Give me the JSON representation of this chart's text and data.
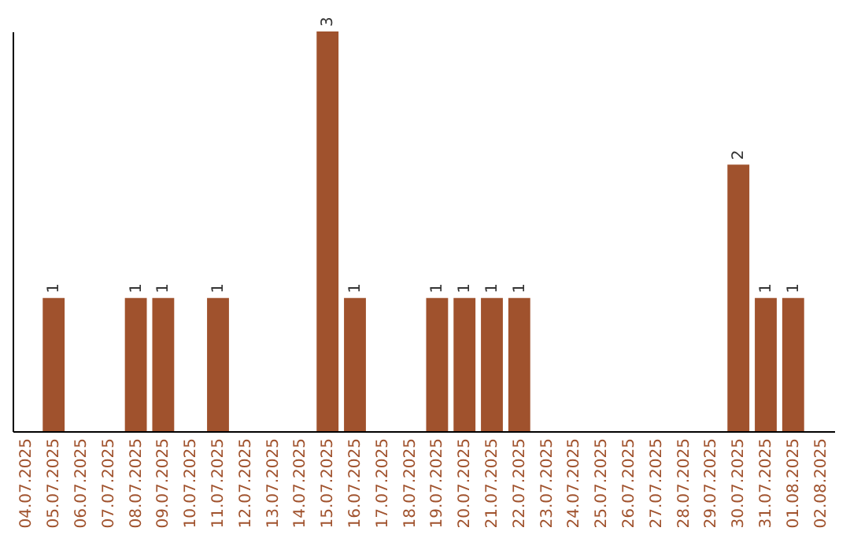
{
  "chart_data": {
    "type": "bar",
    "categories": [
      "04.07.2025",
      "05.07.2025",
      "06.07.2025",
      "07.07.2025",
      "08.07.2025",
      "09.07.2025",
      "10.07.2025",
      "11.07.2025",
      "12.07.2025",
      "13.07.2025",
      "14.07.2025",
      "15.07.2025",
      "16.07.2025",
      "17.07.2025",
      "18.07.2025",
      "19.07.2025",
      "20.07.2025",
      "21.07.2025",
      "22.07.2025",
      "23.07.2025",
      "24.07.2025",
      "25.07.2025",
      "26.07.2025",
      "27.07.2025",
      "28.07.2025",
      "29.07.2025",
      "30.07.2025",
      "31.07.2025",
      "01.08.2025",
      "02.08.2025"
    ],
    "values": [
      0,
      1,
      0,
      0,
      1,
      1,
      0,
      1,
      0,
      0,
      0,
      3,
      1,
      0,
      0,
      1,
      1,
      1,
      1,
      0,
      0,
      0,
      0,
      0,
      0,
      0,
      2,
      1,
      1,
      0
    ],
    "value_labels": [
      null,
      "1",
      null,
      null,
      "1",
      "1",
      null,
      "1",
      null,
      null,
      null,
      "3",
      "1",
      null,
      null,
      "1",
      "1",
      "1",
      "1",
      null,
      null,
      null,
      null,
      null,
      null,
      null,
      "2",
      "1",
      "1",
      null
    ],
    "color": "#a0522d",
    "grid": false,
    "tick_labels": "x"
  }
}
